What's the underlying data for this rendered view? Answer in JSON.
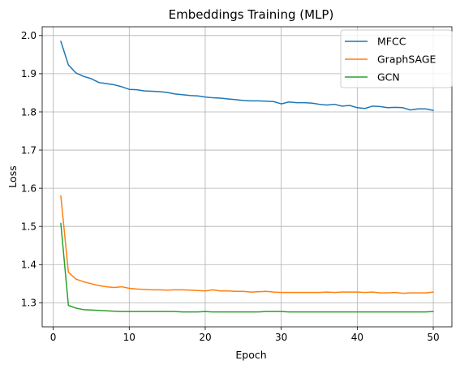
{
  "chart_data": {
    "type": "line",
    "title": "Embeddings Training (MLP)",
    "xlabel": "Epoch",
    "ylabel": "Loss",
    "xlim": [
      -1.45,
      52.45
    ],
    "ylim": [
      1.237,
      2.023
    ],
    "xticks": [
      0,
      10,
      20,
      30,
      40,
      50
    ],
    "yticks": [
      1.3,
      1.4,
      1.5,
      1.6,
      1.7,
      1.8,
      1.9,
      2.0
    ],
    "ytick_labels": [
      "1.3",
      "1.4",
      "1.5",
      "1.6",
      "1.7",
      "1.8",
      "1.9",
      "2.0"
    ],
    "grid": true,
    "legend_position": "top-right",
    "x": [
      1,
      2,
      3,
      4,
      5,
      6,
      7,
      8,
      9,
      10,
      11,
      12,
      13,
      14,
      15,
      16,
      17,
      18,
      19,
      20,
      21,
      22,
      23,
      24,
      25,
      26,
      27,
      28,
      29,
      30,
      31,
      32,
      33,
      34,
      35,
      36,
      37,
      38,
      39,
      40,
      41,
      42,
      43,
      44,
      45,
      46,
      47,
      48,
      49,
      50
    ],
    "series": [
      {
        "name": "MFCC",
        "color": "#1f77b4",
        "values": [
          1.985,
          1.923,
          1.902,
          1.893,
          1.887,
          1.877,
          1.874,
          1.871,
          1.866,
          1.859,
          1.858,
          1.855,
          1.854,
          1.853,
          1.851,
          1.847,
          1.845,
          1.843,
          1.842,
          1.839,
          1.837,
          1.836,
          1.834,
          1.832,
          1.83,
          1.829,
          1.829,
          1.828,
          1.827,
          1.821,
          1.826,
          1.824,
          1.824,
          1.823,
          1.82,
          1.818,
          1.82,
          1.815,
          1.817,
          1.811,
          1.809,
          1.815,
          1.814,
          1.811,
          1.812,
          1.811,
          1.805,
          1.808,
          1.808,
          1.804
        ]
      },
      {
        "name": "GraphSAGE",
        "color": "#ff7f0e",
        "values": [
          1.58,
          1.38,
          1.362,
          1.355,
          1.35,
          1.345,
          1.342,
          1.34,
          1.342,
          1.338,
          1.336,
          1.335,
          1.334,
          1.334,
          1.333,
          1.334,
          1.334,
          1.333,
          1.332,
          1.331,
          1.334,
          1.331,
          1.331,
          1.33,
          1.33,
          1.328,
          1.329,
          1.33,
          1.328,
          1.327,
          1.327,
          1.327,
          1.327,
          1.327,
          1.327,
          1.328,
          1.327,
          1.328,
          1.328,
          1.328,
          1.327,
          1.328,
          1.326,
          1.326,
          1.327,
          1.325,
          1.326,
          1.326,
          1.326,
          1.328
        ]
      },
      {
        "name": "GCN",
        "color": "#2ca02c",
        "values": [
          1.508,
          1.293,
          1.286,
          1.282,
          1.281,
          1.28,
          1.279,
          1.278,
          1.277,
          1.277,
          1.277,
          1.277,
          1.277,
          1.277,
          1.277,
          1.277,
          1.276,
          1.276,
          1.276,
          1.277,
          1.276,
          1.276,
          1.276,
          1.276,
          1.276,
          1.276,
          1.276,
          1.277,
          1.277,
          1.277,
          1.276,
          1.276,
          1.276,
          1.276,
          1.276,
          1.276,
          1.276,
          1.276,
          1.276,
          1.276,
          1.276,
          1.276,
          1.276,
          1.276,
          1.276,
          1.276,
          1.276,
          1.276,
          1.276,
          1.277
        ]
      }
    ]
  }
}
